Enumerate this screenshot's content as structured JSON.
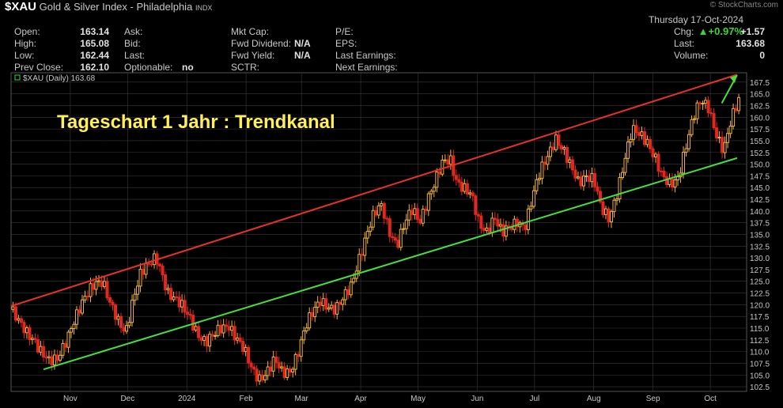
{
  "header": {
    "symbol": "$XAU",
    "name": "Gold & Silver Index - Philadelphia",
    "exchange": "INDX",
    "watermark": "© StockCharts.com",
    "date": "Thursday  17-Oct-2024",
    "pct_change": "+0.97%",
    "col1": [
      {
        "label": "Open:",
        "value": "163.14"
      },
      {
        "label": "High:",
        "value": "165.08"
      },
      {
        "label": "Low:",
        "value": "162.44"
      },
      {
        "label": "Prev Close:",
        "value": "162.10"
      }
    ],
    "col2": [
      {
        "label": "Ask:",
        "value": ""
      },
      {
        "label": "Bid:",
        "value": ""
      },
      {
        "label": "Last:",
        "value": ""
      },
      {
        "label": "Optionable:",
        "value": "no"
      }
    ],
    "col3": [
      {
        "label": "Mkt Cap:",
        "value": ""
      },
      {
        "label": "Fwd Dividend:",
        "value": "N/A"
      },
      {
        "label": "Fwd Yield:",
        "value": "N/A"
      },
      {
        "label": "SCTR:",
        "value": ""
      }
    ],
    "col4": [
      {
        "label": "P/E:",
        "value": ""
      },
      {
        "label": "EPS:",
        "value": ""
      },
      {
        "label": "Last Earnings:",
        "value": ""
      },
      {
        "label": "Next Earnings:",
        "value": ""
      }
    ],
    "col5": [
      {
        "label": "Chg:",
        "value": "+1.57"
      },
      {
        "label": "Last:",
        "value": "163.68"
      },
      {
        "label": "Volume:",
        "value": "0"
      }
    ]
  },
  "chart_data": {
    "type": "candlestick",
    "legend": "$XAU (Daily) 163.68",
    "annotation": "Tageschart 1 Jahr : Trendkanal",
    "ylim": [
      101.5,
      169.5
    ],
    "yticks": [
      102.5,
      105,
      107.5,
      110,
      112.5,
      115,
      117.5,
      120,
      122.5,
      125,
      127.5,
      130,
      132.5,
      135,
      137.5,
      140,
      142.5,
      145,
      147.5,
      150,
      152.5,
      155,
      157.5,
      160,
      162.5,
      165,
      167.5
    ],
    "month_labels": [
      {
        "label": "Nov",
        "day": 31
      },
      {
        "label": "Dec",
        "day": 61
      },
      {
        "label": "2024",
        "day": 92
      },
      {
        "label": "Feb",
        "day": 123
      },
      {
        "label": "Mar",
        "day": 152
      },
      {
        "label": "Apr",
        "day": 183
      },
      {
        "label": "May",
        "day": 213
      },
      {
        "label": "Jun",
        "day": 244
      },
      {
        "label": "Jul",
        "day": 274
      },
      {
        "label": "Aug",
        "day": 305
      },
      {
        "label": "Sep",
        "day": 336
      },
      {
        "label": "Oct",
        "day": 366
      }
    ],
    "date_range": [
      "2023-10-17",
      "2024-10-17"
    ],
    "upper_trend": {
      "start": [
        0,
        119.7
      ],
      "end": [
        380,
        169.1
      ],
      "color": "#e83228"
    },
    "lower_trend": {
      "start": [
        17,
        106.2
      ],
      "end": [
        380,
        151.3
      ],
      "color": "#44e03c"
    },
    "series": [
      {
        "day": 0,
        "close": 119
      },
      {
        "day": 4,
        "close": 116
      },
      {
        "day": 8,
        "close": 114
      },
      {
        "day": 12,
        "close": 113
      },
      {
        "day": 16,
        "close": 110
      },
      {
        "day": 20,
        "close": 107.5
      },
      {
        "day": 24,
        "close": 108
      },
      {
        "day": 28,
        "close": 112
      },
      {
        "day": 32,
        "close": 116
      },
      {
        "day": 36,
        "close": 119
      },
      {
        "day": 40,
        "close": 122
      },
      {
        "day": 44,
        "close": 125
      },
      {
        "day": 48,
        "close": 125.5
      },
      {
        "day": 52,
        "close": 120
      },
      {
        "day": 56,
        "close": 116
      },
      {
        "day": 60,
        "close": 114
      },
      {
        "day": 64,
        "close": 122
      },
      {
        "day": 68,
        "close": 127
      },
      {
        "day": 72,
        "close": 128
      },
      {
        "day": 76,
        "close": 130
      },
      {
        "day": 79,
        "close": 127
      },
      {
        "day": 82,
        "close": 123
      },
      {
        "day": 86,
        "close": 121
      },
      {
        "day": 90,
        "close": 119
      },
      {
        "day": 94,
        "close": 117
      },
      {
        "day": 98,
        "close": 114
      },
      {
        "day": 102,
        "close": 112
      },
      {
        "day": 106,
        "close": 113
      },
      {
        "day": 110,
        "close": 115
      },
      {
        "day": 114,
        "close": 116
      },
      {
        "day": 118,
        "close": 113
      },
      {
        "day": 122,
        "close": 110
      },
      {
        "day": 126,
        "close": 106
      },
      {
        "day": 130,
        "close": 104.5
      },
      {
        "day": 134,
        "close": 106
      },
      {
        "day": 138,
        "close": 108
      },
      {
        "day": 142,
        "close": 105
      },
      {
        "day": 146,
        "close": 106
      },
      {
        "day": 150,
        "close": 110
      },
      {
        "day": 154,
        "close": 115
      },
      {
        "day": 158,
        "close": 118
      },
      {
        "day": 162,
        "close": 121
      },
      {
        "day": 166,
        "close": 120
      },
      {
        "day": 170,
        "close": 119
      },
      {
        "day": 174,
        "close": 121
      },
      {
        "day": 178,
        "close": 124
      },
      {
        "day": 182,
        "close": 130
      },
      {
        "day": 186,
        "close": 135
      },
      {
        "day": 190,
        "close": 139
      },
      {
        "day": 194,
        "close": 141
      },
      {
        "day": 198,
        "close": 136
      },
      {
        "day": 202,
        "close": 133
      },
      {
        "day": 206,
        "close": 137
      },
      {
        "day": 210,
        "close": 140
      },
      {
        "day": 214,
        "close": 138
      },
      {
        "day": 218,
        "close": 143
      },
      {
        "day": 222,
        "close": 146
      },
      {
        "day": 226,
        "close": 150
      },
      {
        "day": 230,
        "close": 151
      },
      {
        "day": 233,
        "close": 147
      },
      {
        "day": 237,
        "close": 145
      },
      {
        "day": 241,
        "close": 143
      },
      {
        "day": 245,
        "close": 137
      },
      {
        "day": 249,
        "close": 136
      },
      {
        "day": 253,
        "close": 139
      },
      {
        "day": 257,
        "close": 135
      },
      {
        "day": 261,
        "close": 136
      },
      {
        "day": 265,
        "close": 138
      },
      {
        "day": 269,
        "close": 137
      },
      {
        "day": 273,
        "close": 143
      },
      {
        "day": 277,
        "close": 148
      },
      {
        "day": 281,
        "close": 152
      },
      {
        "day": 285,
        "close": 156
      },
      {
        "day": 289,
        "close": 153
      },
      {
        "day": 293,
        "close": 149
      },
      {
        "day": 297,
        "close": 146
      },
      {
        "day": 301,
        "close": 148
      },
      {
        "day": 305,
        "close": 147
      },
      {
        "day": 309,
        "close": 140
      },
      {
        "day": 313,
        "close": 138
      },
      {
        "day": 317,
        "close": 144
      },
      {
        "day": 321,
        "close": 151
      },
      {
        "day": 325,
        "close": 157
      },
      {
        "day": 329,
        "close": 156
      },
      {
        "day": 333,
        "close": 155
      },
      {
        "day": 337,
        "close": 152
      },
      {
        "day": 341,
        "close": 147
      },
      {
        "day": 345,
        "close": 145
      },
      {
        "day": 349,
        "close": 147
      },
      {
        "day": 353,
        "close": 154
      },
      {
        "day": 357,
        "close": 160
      },
      {
        "day": 361,
        "close": 163
      },
      {
        "day": 365,
        "close": 162
      },
      {
        "day": 369,
        "close": 157
      },
      {
        "day": 373,
        "close": 153
      },
      {
        "day": 377,
        "close": 159
      },
      {
        "day": 381,
        "close": 163.68
      }
    ],
    "colors": {
      "up": "#f2b43a",
      "down": "#e3271e",
      "grid": "#3a3a3a",
      "axis_text": "#c8c8c8",
      "annotation": "#ffef5a",
      "arrow": "#44e03c"
    }
  }
}
